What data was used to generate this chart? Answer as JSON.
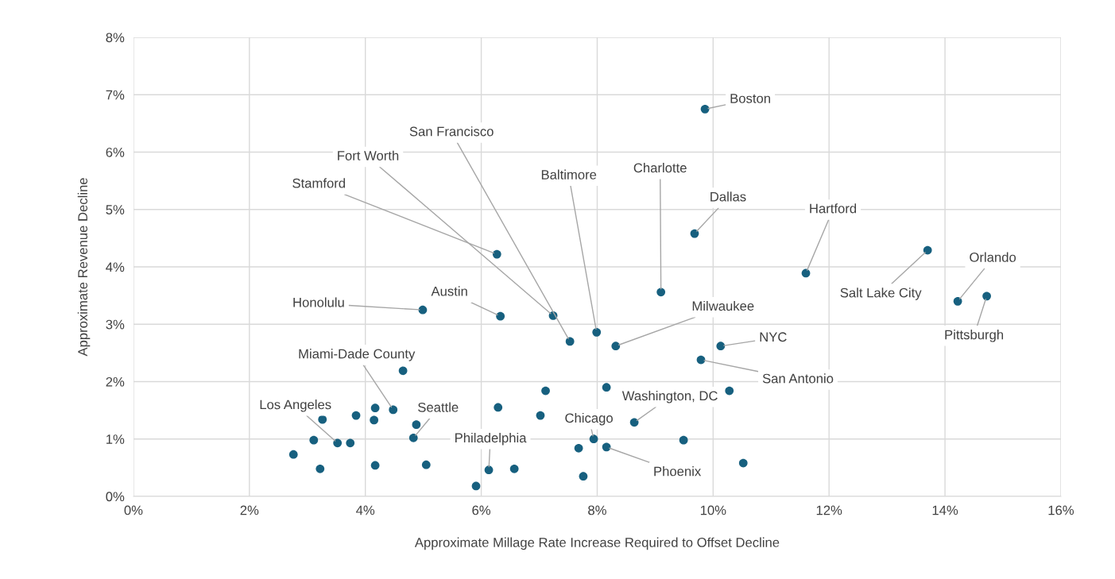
{
  "chart_data": {
    "type": "scatter",
    "xlabel": "Approximate Millage Rate Increase Required to Offset Decline",
    "ylabel": "Approximate Revenue Decline",
    "x": [
      9.86,
      9.68,
      9.1,
      11.6,
      13.7,
      14.22,
      14.72,
      6.27,
      7.24,
      7.53,
      7.99,
      8.32,
      10.13,
      4.99,
      6.33,
      9.79,
      8.64,
      7.94,
      8.16,
      6.13,
      4.48,
      4.83,
      3.52,
      7.11,
      8.16,
      10.28,
      6.29,
      7.02,
      9.49,
      7.68,
      10.52,
      6.57,
      7.76,
      5.91,
      4.65,
      4.17,
      3.84,
      3.26,
      4.15,
      4.88,
      3.11,
      3.74,
      2.76,
      3.22,
      4.17,
      5.05
    ],
    "series": [
      {
        "color": "#17607f",
        "values": [
          6.75,
          4.58,
          3.56,
          3.89,
          4.29,
          3.4,
          3.49,
          4.22,
          3.15,
          2.7,
          2.86,
          2.62,
          2.62,
          3.25,
          3.14,
          2.38,
          1.29,
          1.0,
          0.86,
          0.46,
          1.51,
          1.02,
          0.93,
          1.84,
          1.9,
          1.84,
          1.55,
          1.41,
          0.98,
          0.84,
          0.58,
          0.48,
          0.35,
          0.18,
          2.19,
          1.54,
          1.41,
          1.34,
          1.33,
          1.25,
          0.98,
          0.93,
          0.73,
          0.48,
          0.54,
          0.55
        ]
      }
    ],
    "xlim": [
      0,
      16
    ],
    "xticks": [
      {
        "value": 0,
        "label": "0%"
      },
      {
        "value": 2,
        "label": "2%"
      },
      {
        "value": 4,
        "label": "4%"
      },
      {
        "value": 6,
        "label": "6%"
      },
      {
        "value": 8,
        "label": "8%"
      },
      {
        "value": 10,
        "label": "10%"
      },
      {
        "value": 12,
        "label": "12%"
      },
      {
        "value": 14,
        "label": "14%"
      },
      {
        "value": 16,
        "label": "16%"
      }
    ],
    "ylim": [
      0,
      8
    ],
    "yticks": [
      {
        "value": 0,
        "label": "0%"
      },
      {
        "value": 1,
        "label": "1%"
      },
      {
        "value": 2,
        "label": "2%"
      },
      {
        "value": 3,
        "label": "3%"
      },
      {
        "value": 4,
        "label": "4%"
      },
      {
        "value": 5,
        "label": "5%"
      },
      {
        "value": 6,
        "label": "6%"
      },
      {
        "value": 7,
        "label": "7%"
      },
      {
        "value": 8,
        "label": "8%"
      }
    ],
    "grid": true,
    "marker": "circle",
    "annotations": [
      {
        "text": "Boston",
        "x": 9.86,
        "y": 6.75
      },
      {
        "text": "Dallas",
        "x": 9.68,
        "y": 4.58
      },
      {
        "text": "Charlotte",
        "x": 9.1,
        "y": 3.56
      },
      {
        "text": "Hartford",
        "x": 11.6,
        "y": 3.89
      },
      {
        "text": "Salt Lake City",
        "x": 13.7,
        "y": 4.29
      },
      {
        "text": "Orlando",
        "x": 14.22,
        "y": 3.4
      },
      {
        "text": "Pittsburgh",
        "x": 14.72,
        "y": 3.49
      },
      {
        "text": "Stamford",
        "x": 6.27,
        "y": 4.22
      },
      {
        "text": "Fort Worth",
        "x": 7.24,
        "y": 3.15
      },
      {
        "text": "San Francisco",
        "x": 7.53,
        "y": 2.7
      },
      {
        "text": "Baltimore",
        "x": 7.99,
        "y": 2.86
      },
      {
        "text": "Milwaukee",
        "x": 8.32,
        "y": 2.62
      },
      {
        "text": "NYC",
        "x": 10.13,
        "y": 2.62
      },
      {
        "text": "Honolulu",
        "x": 4.99,
        "y": 3.25
      },
      {
        "text": "Austin",
        "x": 6.33,
        "y": 3.14
      },
      {
        "text": "San Antonio",
        "x": 9.79,
        "y": 2.38
      },
      {
        "text": "Washington, DC",
        "x": 8.64,
        "y": 1.29
      },
      {
        "text": "Chicago",
        "x": 7.94,
        "y": 1.0
      },
      {
        "text": "Phoenix",
        "x": 8.16,
        "y": 0.86
      },
      {
        "text": "Philadelphia",
        "x": 6.13,
        "y": 0.46
      },
      {
        "text": "Miami-Dade County",
        "x": 4.48,
        "y": 1.51
      },
      {
        "text": "Seattle",
        "x": 4.83,
        "y": 1.02
      },
      {
        "text": "Los Angeles",
        "x": 3.52,
        "y": 0.93
      }
    ]
  }
}
